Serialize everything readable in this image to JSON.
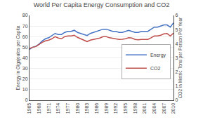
{
  "chart_data": {
    "type": "line",
    "title": "World Per Capita Energy Consumption and CO2",
    "x": [
      1965,
      1966,
      1967,
      1968,
      1969,
      1970,
      1971,
      1972,
      1973,
      1974,
      1975,
      1976,
      1977,
      1978,
      1979,
      1980,
      1981,
      1982,
      1983,
      1984,
      1985,
      1986,
      1987,
      1988,
      1989,
      1990,
      1991,
      1992,
      1993,
      1994,
      1995,
      1996,
      1997,
      1998,
      1999,
      2000,
      2001,
      2002,
      2003,
      2004,
      2005,
      2006,
      2007,
      2008,
      2009,
      2010
    ],
    "series": [
      {
        "name": "Energy",
        "color": "#4472C4",
        "axis": "y",
        "values": [
          48,
          50,
          51,
          53,
          56,
          58,
          59,
          61,
          63,
          62,
          62,
          64,
          65,
          65,
          66,
          64,
          63,
          62,
          61,
          63,
          64,
          65,
          66,
          67,
          67,
          66,
          65,
          65,
          64,
          64,
          65,
          66,
          65,
          64,
          64,
          65,
          65,
          65,
          67,
          69,
          69,
          70,
          71,
          71,
          69,
          73
        ]
      },
      {
        "name": "CO2",
        "color": "#C0504D",
        "axis": "y2",
        "values": [
          3.65,
          3.75,
          3.8,
          3.95,
          4.1,
          4.2,
          4.25,
          4.35,
          4.5,
          4.4,
          4.35,
          4.5,
          4.55,
          4.55,
          4.6,
          4.45,
          4.35,
          4.25,
          4.15,
          4.25,
          4.3,
          4.35,
          4.4,
          4.5,
          4.5,
          4.42,
          4.38,
          4.35,
          4.3,
          4.32,
          4.35,
          4.42,
          4.4,
          4.3,
          4.28,
          4.3,
          4.3,
          4.3,
          4.42,
          4.55,
          4.55,
          4.6,
          4.7,
          4.72,
          4.55,
          4.75
        ]
      }
    ],
    "ylabel": "Energy in Gigajoules per Capita",
    "y2label": "CO2 in Metric Tons per Person Per Year",
    "xlim": [
      1965,
      2010
    ],
    "xticks": [
      1965,
      1968,
      1971,
      1974,
      1977,
      1980,
      1983,
      1986,
      1989,
      1992,
      1995,
      1998,
      2001,
      2004,
      2007,
      2010
    ],
    "ylim": [
      0,
      80
    ],
    "yticks": [
      0,
      10,
      20,
      30,
      40,
      50,
      60,
      70,
      80
    ],
    "y2lim": [
      0,
      6
    ],
    "y2ticks": [
      0,
      1,
      2,
      3,
      4,
      5,
      6
    ],
    "grid": true,
    "legend": "lower right"
  }
}
